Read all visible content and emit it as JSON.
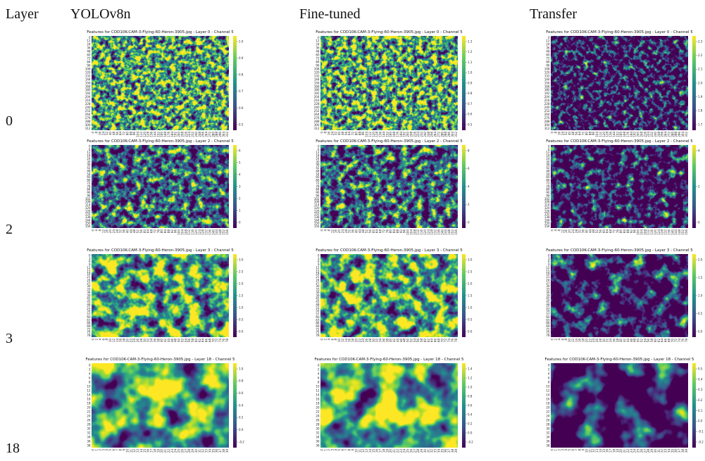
{
  "header": {
    "layer": "Layer",
    "columns": [
      "YOLOv8n",
      "Fine-tuned",
      "Transfer"
    ]
  },
  "rows": [
    {
      "label": "0",
      "yticks": [
        0,
        12,
        24,
        36,
        48,
        60,
        72,
        84,
        96,
        108,
        120,
        132,
        144,
        156,
        168,
        180,
        192,
        204,
        216,
        228,
        240,
        252,
        264,
        276,
        288,
        300,
        312
      ],
      "xticks": [
        0,
        8,
        16,
        24,
        32,
        40,
        48,
        56,
        64,
        72,
        80,
        88,
        96,
        104,
        112,
        120,
        128,
        136,
        144,
        152,
        160,
        168,
        176,
        184,
        192,
        200,
        208,
        216,
        224,
        232,
        240,
        248,
        256,
        264,
        272,
        280,
        288,
        296,
        304,
        312
      ],
      "panels": [
        {
          "title": "Features for COD10K-CAM-3-Flying-60-Heron-3905.jpg - Layer 0 - Channel 5",
          "colorbar": [
            "1.0",
            "0.9",
            "0.8",
            "0.7",
            "0.6",
            "0.5"
          ]
        },
        {
          "title": "Features for COD10K-CAM-3-Flying-60-Heron-3905.jpg - Layer 0 - Channel 5",
          "colorbar": [
            "1.3",
            "1.2",
            "1.1",
            "1.0",
            "0.9",
            "0.8",
            "0.7",
            "0.6",
            "0.5"
          ]
        },
        {
          "title": "Features for COD10K-CAM-3-Flying-60-Heron-3905.jpg - Layer 0 - Channel 5",
          "colorbar": [
            "2.3",
            "2.2",
            "2.1",
            "2.0",
            "1.9",
            "1.8",
            "1.7"
          ]
        }
      ]
    },
    {
      "label": "2",
      "yticks": [
        0,
        6,
        12,
        18,
        24,
        30,
        36,
        42,
        48,
        54,
        60,
        66,
        72,
        78,
        84,
        90,
        96,
        102,
        108,
        114,
        120,
        126,
        132,
        138,
        144,
        150,
        156
      ],
      "xticks": [
        0,
        4,
        8,
        12,
        16,
        20,
        24,
        28,
        32,
        36,
        40,
        44,
        48,
        52,
        56,
        60,
        64,
        68,
        72,
        76,
        80,
        84,
        88,
        92,
        96,
        100,
        104,
        108,
        112,
        116,
        120,
        124,
        128,
        132,
        136,
        140,
        144,
        148,
        152,
        156
      ],
      "panels": [
        {
          "title": "Features for COD10K-CAM-3-Flying-60-Heron-3905.jpg - Layer 2 - Channel 5",
          "colorbar": [
            "6",
            "5",
            "4",
            "3",
            "2",
            "1",
            "0"
          ]
        },
        {
          "title": "Features for COD10K-CAM-3-Flying-60-Heron-3905.jpg - Layer 2 - Channel 5",
          "colorbar": [
            "8",
            "6",
            "4",
            "2",
            "0"
          ]
        },
        {
          "title": "Features for COD10K-CAM-3-Flying-60-Heron-3905.jpg - Layer 2 - Channel 5",
          "colorbar": [
            "4",
            "2",
            "0"
          ]
        }
      ]
    },
    {
      "label": "3",
      "yticks": [
        0,
        3,
        6,
        9,
        12,
        15,
        18,
        21,
        24,
        27,
        30,
        33,
        36,
        39,
        42,
        45,
        48,
        51,
        54,
        57,
        60,
        63,
        66,
        69,
        72,
        75,
        78
      ],
      "xticks": [
        0,
        2,
        4,
        6,
        8,
        10,
        12,
        14,
        16,
        18,
        20,
        22,
        24,
        26,
        28,
        30,
        32,
        34,
        36,
        38,
        40,
        42,
        44,
        46,
        48,
        50,
        52,
        54,
        56,
        58,
        60,
        62,
        64,
        66,
        68,
        70,
        72,
        74,
        76,
        78
      ],
      "panels": [
        {
          "title": "Features for COD10K-CAM-3-Flying-60-Heron-3905.jpg - Layer 3 - Channel 5",
          "colorbar": [
            "3.0",
            "2.5",
            "2.0",
            "1.5",
            "1.0",
            "0.5",
            "0.0"
          ]
        },
        {
          "title": "Features for COD10K-CAM-3-Flying-60-Heron-3905.jpg - Layer 3 - Channel 5",
          "colorbar": [
            "3.0",
            "2.5",
            "2.0",
            "1.5",
            "1.0",
            "0.5",
            "0.0"
          ]
        },
        {
          "title": "Features for COD10K-CAM-3-Flying-60-Heron-3905.jpg - Layer 3 - Channel 5",
          "colorbar": [
            "2.0",
            "1.5",
            "1.0",
            "0.5",
            "0.0"
          ]
        }
      ]
    },
    {
      "label": "18",
      "yticks": [
        0,
        2,
        4,
        6,
        8,
        10,
        12,
        14,
        16,
        18,
        20,
        22,
        24,
        26,
        28,
        30,
        32,
        34,
        36,
        38
      ],
      "xticks": [
        0,
        1,
        2,
        3,
        4,
        5,
        6,
        7,
        8,
        9,
        10,
        11,
        12,
        13,
        14,
        15,
        16,
        17,
        18,
        19,
        20,
        21,
        22,
        23,
        24,
        25,
        26,
        27,
        28,
        29,
        30,
        31,
        32,
        33,
        34,
        35,
        36,
        37,
        38,
        39
      ],
      "panels": [
        {
          "title": "Features for COD10K-CAM-3-Flying-60-Heron-3905.jpg - Layer 18 - Channel 5",
          "colorbar": [
            "1.0",
            "0.8",
            "0.6",
            "0.4",
            "0.2",
            "0.0",
            "-0.2"
          ]
        },
        {
          "title": "Features for COD10K-CAM-3-Flying-60-Heron-3905.jpg - Layer 18 - Channel 5",
          "colorbar": [
            "1.4",
            "1.2",
            "1.0",
            "0.8",
            "0.6",
            "0.4",
            "0.2",
            "0.0",
            "-0.2"
          ]
        },
        {
          "title": "Features for COD10K-CAM-3-Flying-60-Heron-3905.jpg - Layer 18 - Channel 5",
          "colorbar": [
            "0.5",
            "0.4",
            "0.3",
            "0.2",
            "0.1",
            "0.0",
            "-0.1",
            "-0.2"
          ]
        }
      ]
    }
  ]
}
